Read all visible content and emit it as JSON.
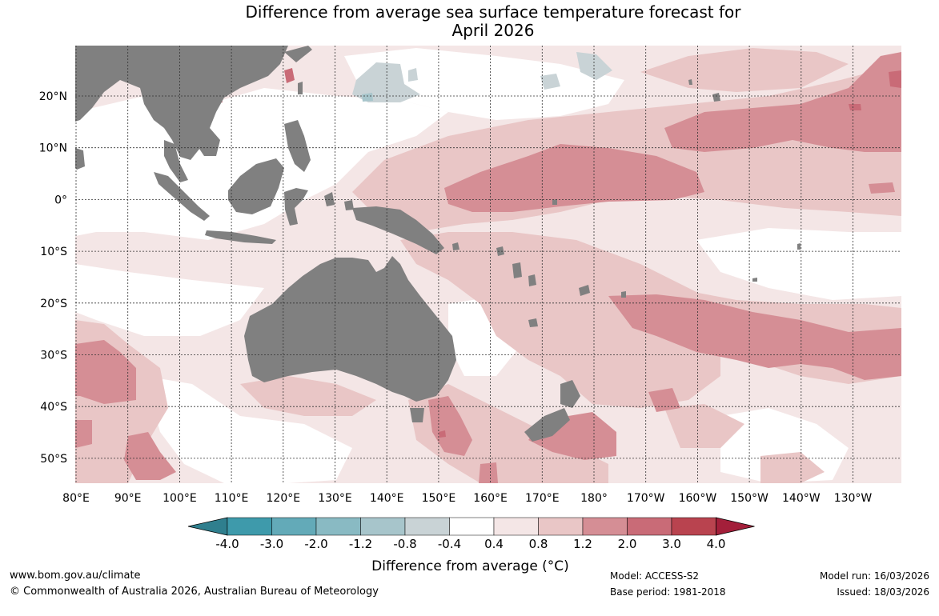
{
  "title": {
    "line1": "Difference from average sea surface temperature forecast for",
    "line2": "April 2026"
  },
  "map": {
    "lat_labels": [
      "20°N",
      "10°N",
      "0°",
      "10°S",
      "20°S",
      "30°S",
      "40°S",
      "50°S"
    ],
    "lon_labels": [
      "80°E",
      "90°E",
      "100°E",
      "110°E",
      "120°E",
      "130°E",
      "140°E",
      "150°E",
      "160°E",
      "170°E",
      "180°",
      "170°W",
      "160°W",
      "150°W",
      "140°W",
      "130°W"
    ],
    "colors": {
      "land": "#808080",
      "ocean_neutral": "#ffffff",
      "warm_0_4": "#f4e6e6",
      "warm_0_8": "#e9c6c6",
      "warm_1_2": "#d58e95",
      "warm_2_0": "#c96b77",
      "warm_3_0": "#b9434f",
      "cool_0_4": "#c9d3d6",
      "cool_0_8": "#a7c5cb"
    }
  },
  "colorbar": {
    "tick_labels": [
      "-4.0",
      "-3.0",
      "-2.0",
      "-1.2",
      "-0.8",
      "-0.4",
      "0.4",
      "0.8",
      "1.2",
      "2.0",
      "3.0",
      "4.0"
    ],
    "colors": [
      "#3e9aab",
      "#63aab8",
      "#89bac3",
      "#a7c5cb",
      "#c9d3d6",
      "#ffffff",
      "#f4e6e6",
      "#e9c6c6",
      "#d58e95",
      "#c96b77",
      "#b9434f"
    ],
    "under_color": "#2f7f8e",
    "over_color": "#a31f3a",
    "title": "Difference from average (°C)"
  },
  "footer": {
    "website": "www.bom.gov.au/climate",
    "copyright": "© Commonwealth of Australia 2026, Australian Bureau of Meteorology",
    "model": "Model: ACCESS-S2",
    "base_period": "Base period: 1981-2018",
    "model_run": "Model run: 16/03/2026",
    "issued": "Issued: 18/03/2026"
  }
}
